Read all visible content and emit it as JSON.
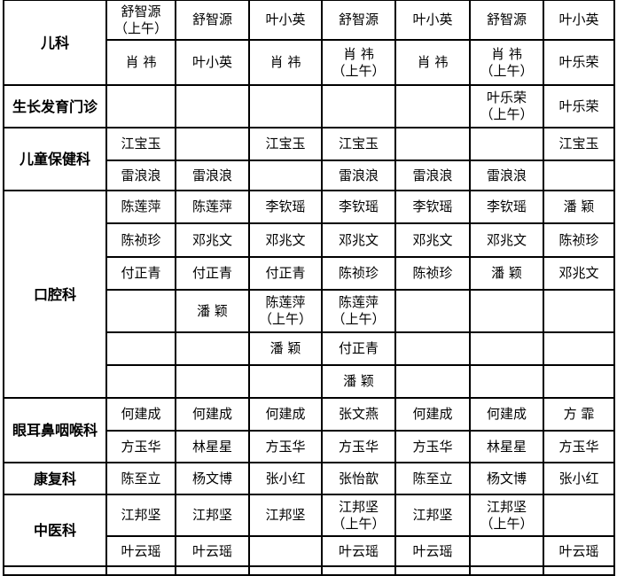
{
  "schedule": [
    {
      "dept": "儿科",
      "rows": [
        [
          "舒智源\n（上午）",
          "舒智源",
          "叶小英",
          "舒智源",
          "叶小英",
          "舒智源",
          "叶小英"
        ],
        [
          "肖  祎",
          "叶小英",
          "肖  祎",
          "肖  祎\n（上午）",
          "肖  祎",
          "肖  祎\n（上午）",
          "叶乐荣"
        ]
      ]
    },
    {
      "dept": "生长发育门诊",
      "rows": [
        [
          "",
          "",
          "",
          "",
          "",
          "叶乐荣\n（上午）",
          "叶乐荣"
        ]
      ]
    },
    {
      "dept": "儿童保健科",
      "rows": [
        [
          "江宝玉",
          "",
          "江宝玉",
          "江宝玉",
          "",
          "",
          "江宝玉"
        ],
        [
          "雷浪浪",
          "雷浪浪",
          "",
          "雷浪浪",
          "雷浪浪",
          "雷浪浪",
          ""
        ]
      ]
    },
    {
      "dept": "口腔科",
      "rows": [
        [
          "陈莲萍",
          "陈莲萍",
          "李钦瑶",
          "李钦瑶",
          "李钦瑶",
          "李钦瑶",
          "潘  颖"
        ],
        [
          "陈祯珍",
          "邓兆文",
          "邓兆文",
          "邓兆文",
          "邓兆文",
          "邓兆文",
          "陈祯珍"
        ],
        [
          "付正青",
          "付正青",
          "付正青",
          "陈祯珍",
          "陈祯珍",
          "潘  颖",
          "邓兆文"
        ],
        [
          "",
          "潘  颖",
          "陈莲萍\n（上午）",
          "陈莲萍\n（上午）",
          "",
          "",
          ""
        ],
        [
          "",
          "",
          "潘  颖",
          "付正青",
          "",
          "",
          ""
        ],
        [
          "",
          "",
          "",
          "潘  颖",
          "",
          "",
          ""
        ]
      ]
    },
    {
      "dept": "眼耳鼻咽喉科",
      "rows": [
        [
          "何建成",
          "何建成",
          "何建成",
          "张文燕",
          "何建成",
          "何建成",
          "方  霏"
        ],
        [
          "方玉华",
          "林星星",
          "方玉华",
          "方玉华",
          "方玉华",
          "林星星",
          "方玉华"
        ]
      ]
    },
    {
      "dept": "康复科",
      "rows": [
        [
          "陈至立",
          "杨文博",
          "张小红",
          "张怡歆",
          "陈至立",
          "杨文博",
          "张小红"
        ]
      ]
    },
    {
      "dept": "中医科",
      "rows": [
        [
          "江邦坚",
          "江邦坚",
          "江邦坚",
          "江邦坚\n（上午）",
          "江邦坚",
          "江邦坚\n（上午）",
          ""
        ],
        [
          "叶云瑶",
          "叶云瑶",
          "",
          "叶云瑶",
          "叶云瑶",
          "",
          "叶云瑶"
        ]
      ]
    },
    {
      "dept": "",
      "rows": [
        [
          "",
          "",
          "",
          "",
          "",
          "",
          ""
        ]
      ]
    }
  ]
}
